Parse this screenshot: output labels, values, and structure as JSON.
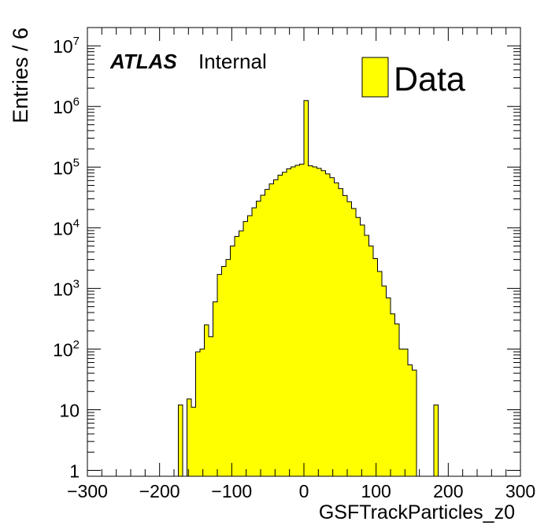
{
  "chart_data": {
    "type": "bar",
    "style": "filled-histogram",
    "title": "",
    "xlabel": "GSFTrackParticles_z0",
    "ylabel": "Entries / 6",
    "xlim": [
      -300,
      300
    ],
    "ylim": [
      0.8,
      20000000
    ],
    "y_scale": "log",
    "grid": false,
    "legend_position": "top-right",
    "x_ticks": [
      "−300",
      "−200",
      "−100",
      "0",
      "100",
      "200",
      "300"
    ],
    "y_ticks": [
      {
        "base": "1",
        "exp": ""
      },
      {
        "base": "10",
        "exp": ""
      },
      {
        "base": "10",
        "exp": "2"
      },
      {
        "base": "10",
        "exp": "3"
      },
      {
        "base": "10",
        "exp": "4"
      },
      {
        "base": "10",
        "exp": "5"
      },
      {
        "base": "10",
        "exp": "6"
      },
      {
        "base": "10",
        "exp": "7"
      }
    ],
    "atlas_label": "ATLAS",
    "atlas_sub": "Internal",
    "series": [
      {
        "name": "Data",
        "color": "#ffff00",
        "line_color": "#000000",
        "bin_width": 6,
        "bins_lo": [
          -174,
          -168,
          -162,
          -156,
          -150,
          -144,
          -138,
          -132,
          -126,
          -120,
          -114,
          -108,
          -102,
          -96,
          -90,
          -84,
          -78,
          -72,
          -66,
          -60,
          -54,
          -48,
          -42,
          -36,
          -30,
          -24,
          -18,
          -12,
          -6,
          0,
          6,
          12,
          18,
          24,
          30,
          36,
          42,
          48,
          54,
          60,
          66,
          72,
          78,
          84,
          90,
          96,
          102,
          108,
          114,
          120,
          126,
          132,
          138,
          144,
          150,
          156,
          162,
          168,
          174,
          180
        ],
        "values": [
          12,
          0.5,
          15,
          11,
          90,
          100,
          250,
          160,
          600,
          1700,
          2300,
          3000,
          5000,
          7200,
          8900,
          12700,
          15800,
          21300,
          27500,
          34400,
          42900,
          52800,
          61900,
          73800,
          82200,
          93700,
          101000,
          107000,
          112000,
          1250000,
          105000,
          101000,
          95400,
          87600,
          77500,
          67000,
          55000,
          44200,
          34000,
          26900,
          20800,
          14800,
          11100,
          7500,
          5000,
          3100,
          1900,
          1100,
          700,
          380,
          260,
          100,
          100,
          55,
          45,
          0.5,
          0.5,
          0.5,
          0.5,
          0.5
        ],
        "extra_bins": [
          {
            "lo": 180,
            "value": 12
          }
        ]
      }
    ]
  }
}
